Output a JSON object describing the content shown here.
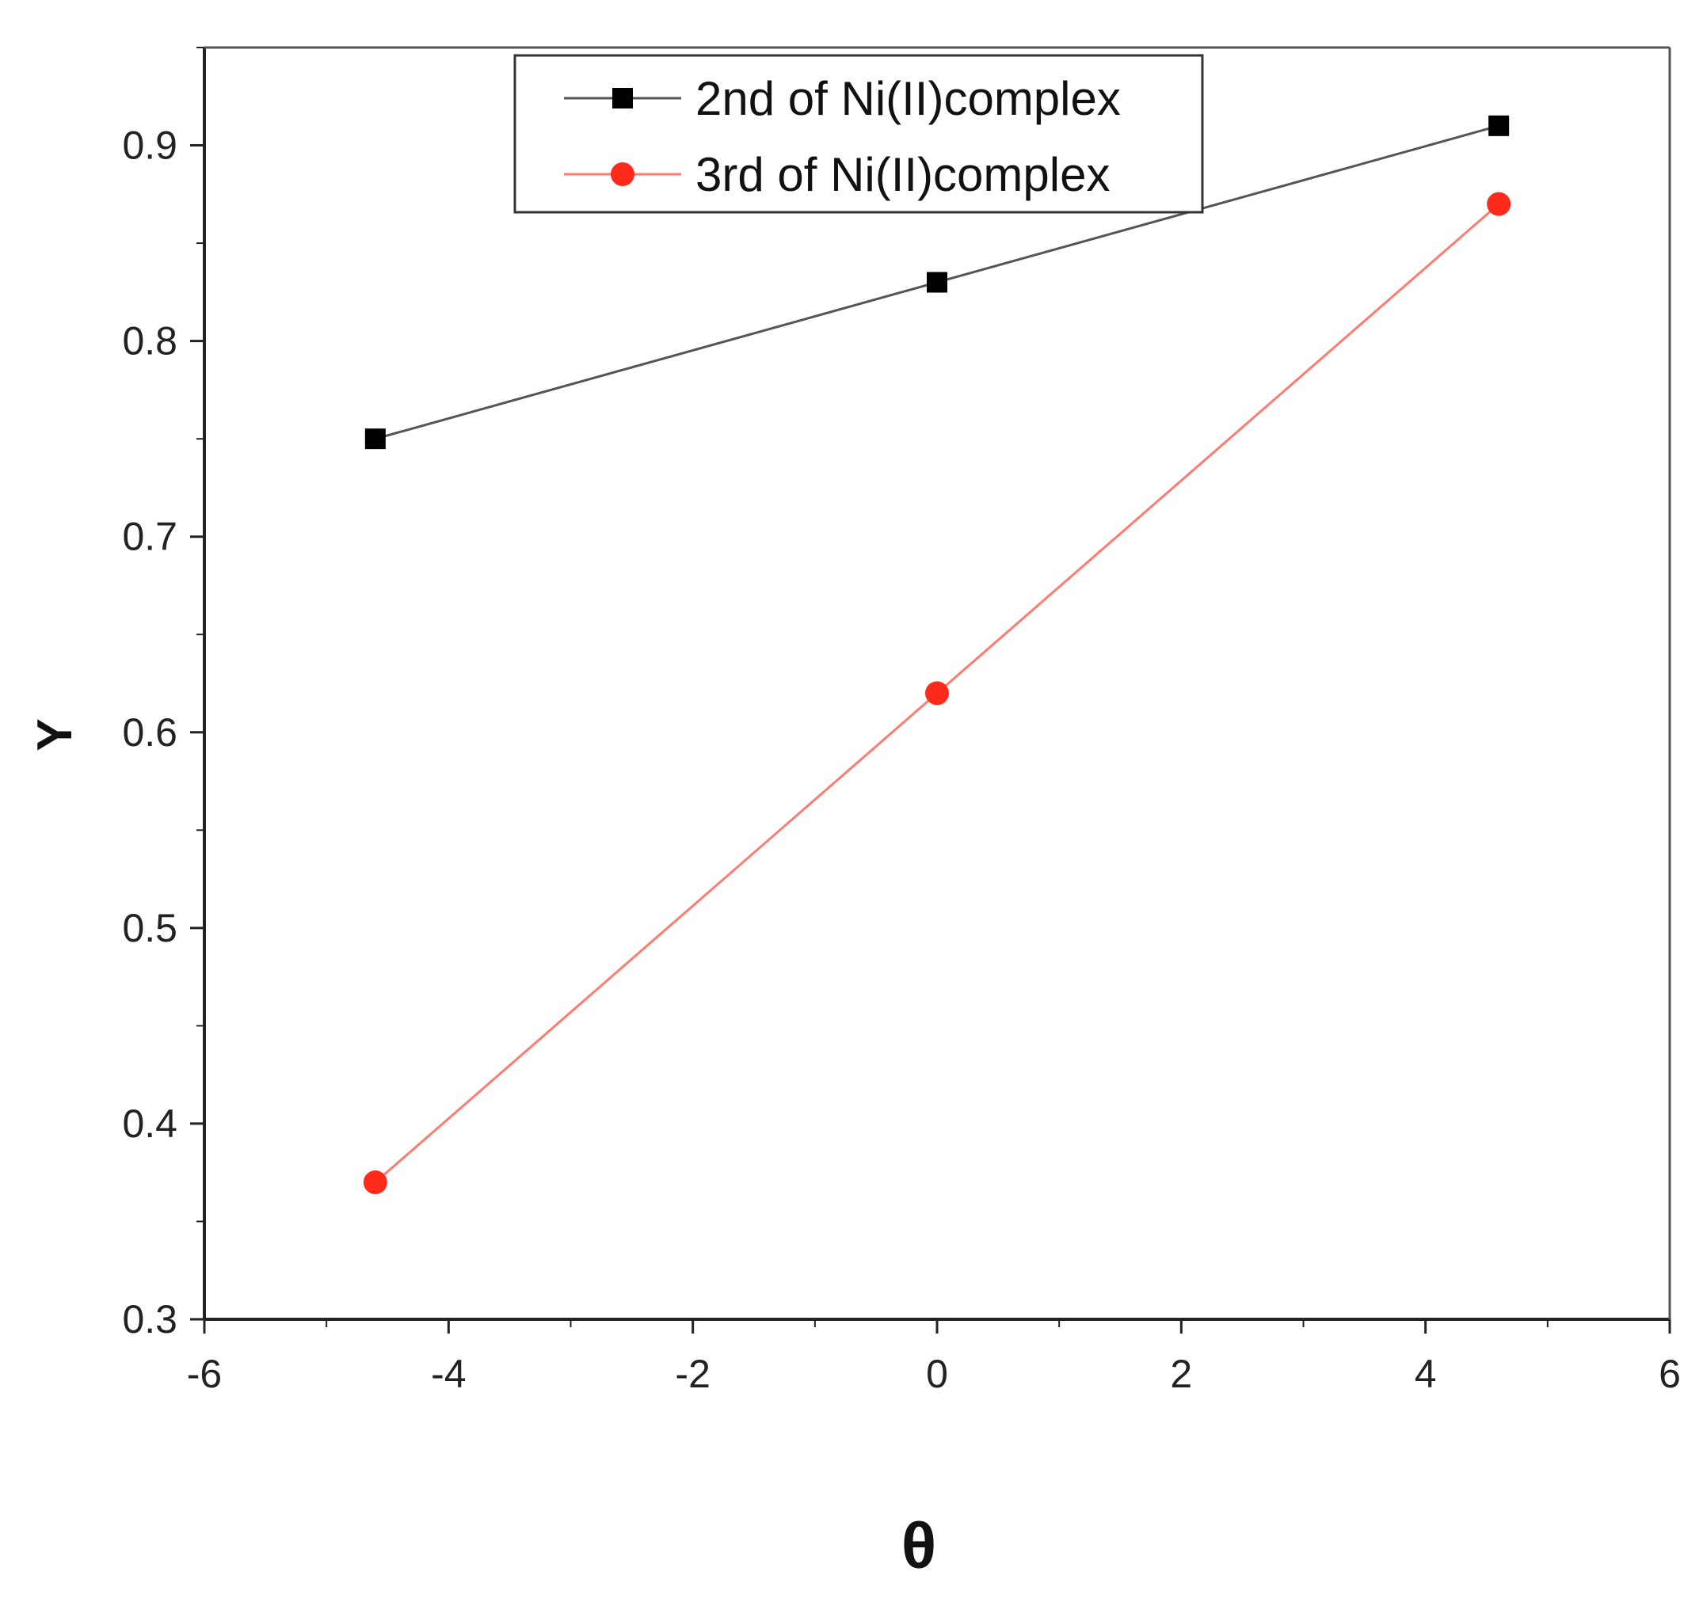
{
  "chart_data": {
    "type": "line",
    "xlabel": "θ",
    "ylabel": "Y",
    "xlim": [
      -6,
      6
    ],
    "ylim": [
      0.3,
      0.95
    ],
    "xticks": [
      -6,
      -4,
      -2,
      0,
      2,
      4,
      6
    ],
    "xtick_labels": [
      "-6",
      "-4",
      "-2",
      "0",
      "2",
      "4",
      "6"
    ],
    "yticks": [
      0.3,
      0.4,
      0.5,
      0.6,
      0.7,
      0.8,
      0.9
    ],
    "ytick_labels": [
      "0.3",
      "0.4",
      "0.5",
      "0.6",
      "0.7",
      "0.8",
      "0.9"
    ],
    "grid": false,
    "legend_position": "top-center",
    "series": [
      {
        "name": "2nd of Ni(II)complex",
        "x": [
          -4.6,
          0,
          4.6
        ],
        "y": [
          0.75,
          0.83,
          0.91
        ],
        "marker": "square",
        "marker_color": "#000000",
        "line_color": "#555555"
      },
      {
        "name": "3rd of Ni(II)complex",
        "x": [
          -4.6,
          0,
          4.6
        ],
        "y": [
          0.37,
          0.62,
          0.87
        ],
        "marker": "circle",
        "marker_color": "#ff2a1a",
        "line_color": "#ff7b70"
      }
    ]
  }
}
